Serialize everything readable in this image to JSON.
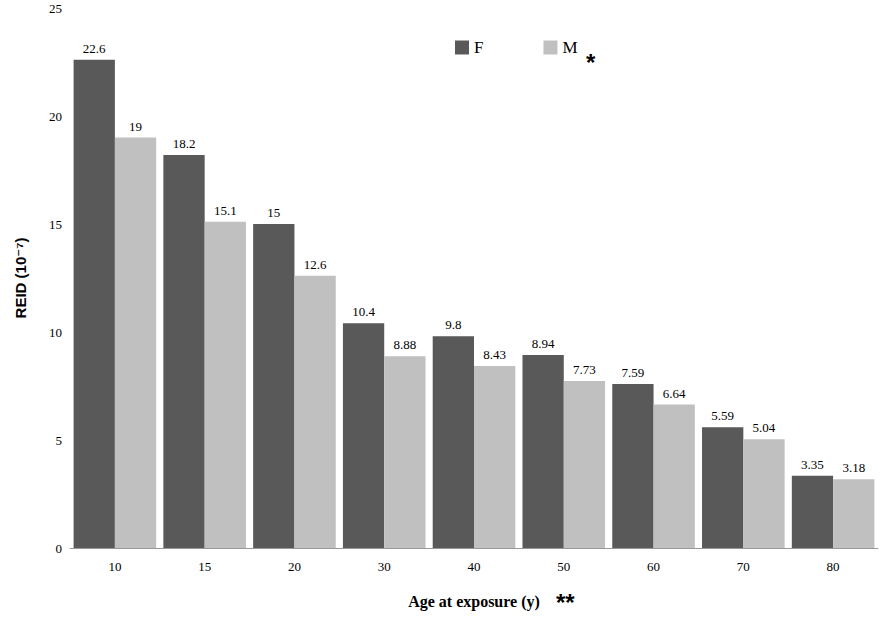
{
  "chart_data": {
    "type": "bar",
    "x_label": "Age at exposure (y)",
    "y_label": "REID (10⁻⁷)",
    "categories": [
      "10",
      "15",
      "20",
      "30",
      "40",
      "50",
      "60",
      "70",
      "80"
    ],
    "series": [
      {
        "name": "F",
        "color": "#595959",
        "values": [
          22.6,
          18.2,
          15,
          10.4,
          9.8,
          8.94,
          7.59,
          5.59,
          3.35
        ]
      },
      {
        "name": "M",
        "color": "#c0c0c0",
        "values": [
          19,
          15.1,
          12.6,
          8.88,
          8.43,
          7.73,
          6.64,
          5.04,
          3.18
        ]
      }
    ],
    "ylim": [
      0,
      25
    ],
    "yticks": [
      0,
      5,
      10,
      15,
      20,
      25
    ],
    "grid": false,
    "legend": "top",
    "data_labels": true,
    "annotations": [
      {
        "text": "*"
      },
      {
        "text": "**"
      }
    ]
  }
}
